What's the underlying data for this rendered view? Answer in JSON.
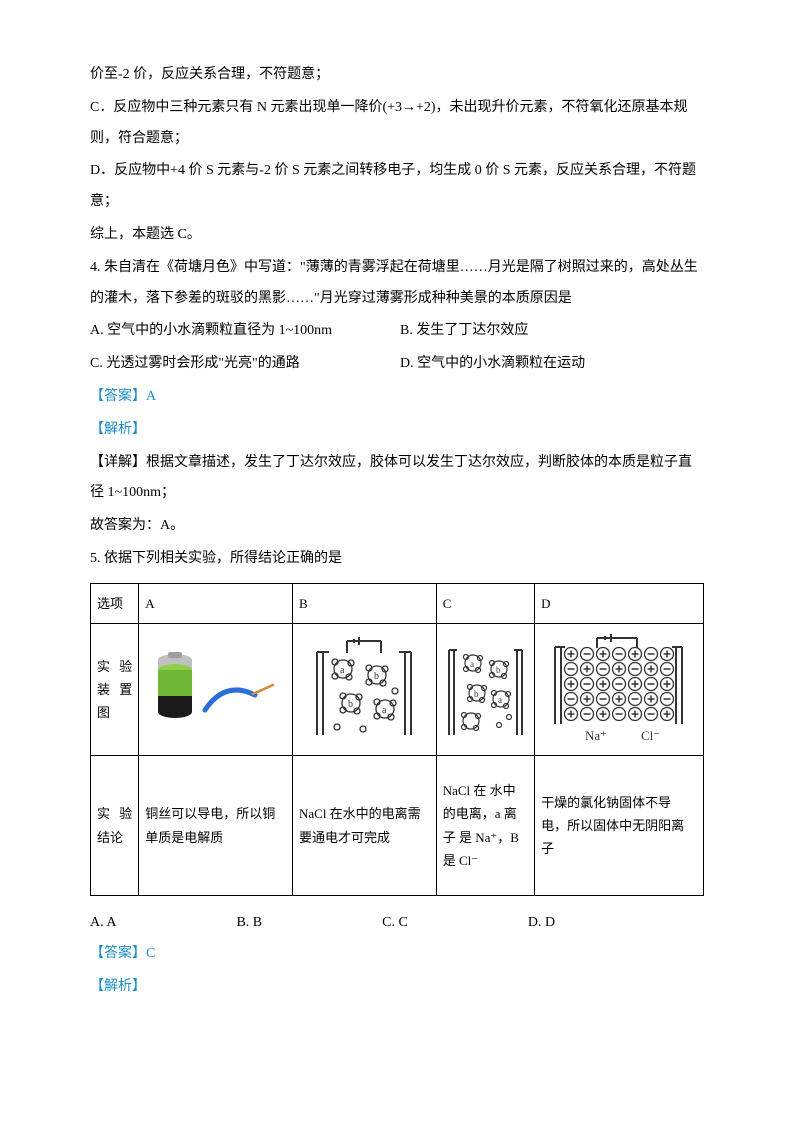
{
  "p1": "价至-2 价，反应关系合理，不符题意；",
  "p2": "C．反应物中三种元素只有 N 元素出现单一降价(+3→+2)，未出现升价元素，不符氧化还原基本规则，符合题意；",
  "p3": "D．反应物中+4 价 S 元素与-2 价 S 元素之间转移电子，均生成 0 价 S 元素，反应关系合理，不符题意；",
  "p4": "综上，本题选 C。",
  "q4": {
    "stem": "4. 朱自清在《荷塘月色》中写道：\"薄薄的青雾浮起在荷塘里……月光是隔了树照过来的，高处丛生的灌木，落下参差的斑驳的黑影……\"月光穿过薄雾形成种种美景的本质原因是",
    "A": "A. 空气中的小水滴颗粒直径为 1~100nm",
    "B": "B. 发生了丁达尔效应",
    "C": "C. 光透过雾时会形成\"光亮\"的通路",
    "D": "D. 空气中的小水滴颗粒在运动",
    "answer": "【答案】A",
    "analysis": "【解析】",
    "detail": "【详解】根据文章描述，发生了丁达尔效应，胶体可以发生丁达尔效应，判断胶体的本质是粒子直径 1~100nm；",
    "so": "故答案为：A。"
  },
  "q5": {
    "stem": "5. 依据下列相关实验，所得结论正确的是",
    "th0": "选项",
    "thA": "A",
    "thB": "B",
    "thC": "C",
    "thD": "D",
    "rowlabel_device": "实 验 装 置 图",
    "rowlabel_conc": "实 验 结论",
    "concA": "铜丝可以导电，所以铜单质是电解质",
    "concB": "NaCl 在水中的电离需要通电才可完成",
    "concC": "NaCl 在 水中的电离，a 离 子 是 Na⁺，B 是 Cl⁻",
    "concD": "干燥的氯化钠固体不导电，所以固体中无阴阳离子",
    "optA": "A. A",
    "optB": "B. B",
    "optC": "C. C",
    "optD": "D. D",
    "answer": "【答案】C",
    "analysis": "【解析】",
    "svg": {
      "battery_top": "#c0c0c0",
      "battery_body": "#6fb536",
      "battery_band": "#1a1a1a",
      "wire_blue": "#2a6fd6",
      "wire_copper": "#d48a3a",
      "plate": "#333333",
      "circle": "#333333",
      "plus": "#333333",
      "minus": "#333333",
      "label_na": "Na⁺",
      "label_cl": "Cl⁻"
    }
  }
}
